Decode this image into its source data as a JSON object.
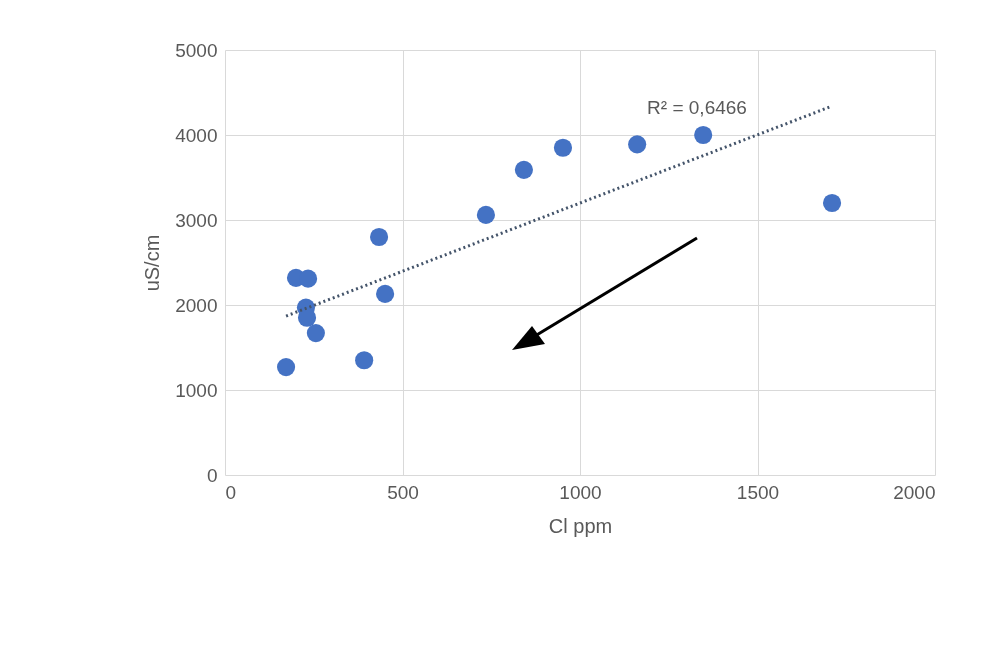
{
  "chart_data": {
    "type": "scatter",
    "xlabel": "Cl ppm",
    "ylabel": "uS/cm",
    "xlim": [
      0,
      2000
    ],
    "xticks": [
      0,
      500,
      1000,
      1500,
      2000
    ],
    "ylim": [
      0,
      5000
    ],
    "yticks": [
      0,
      1000,
      2000,
      3000,
      4000,
      5000
    ],
    "grid": true,
    "marker": "circle",
    "series": [
      {
        "type": "scatter",
        "color": "#4472c4",
        "x": [
          172,
          200,
          234,
          228,
          231,
          256,
          392,
          434,
          451,
          735,
          842,
          952,
          1161,
          1347,
          1710
        ],
        "values": [
          1270,
          2320,
          2310,
          1970,
          1850,
          1670,
          1350,
          2800,
          2130,
          3060,
          3590,
          3850,
          3890,
          4000,
          3200
        ]
      },
      {
        "type": "line",
        "color": "#44546a",
        "line_style": "dotted",
        "marker": "none",
        "x": [
          172,
          1710
        ],
        "values": [
          1870,
          4340
        ]
      }
    ],
    "annotations": [
      "R² = 0,6466"
    ]
  }
}
